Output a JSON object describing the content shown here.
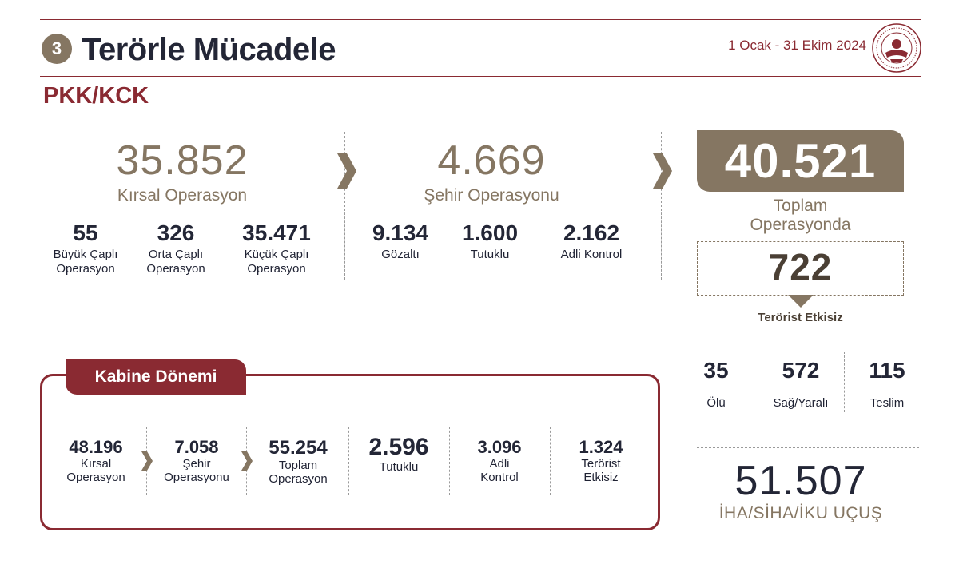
{
  "header": {
    "section_number": "3",
    "title": "Terörle Mücadele",
    "date_range": "1 Ocak - 31 Ekim 2024",
    "subtitle": "PKK/KCK"
  },
  "rural": {
    "value": "35.852",
    "label": "Kırsal Operasyon",
    "items": [
      {
        "value": "55",
        "line1": "Büyük Çaplı",
        "line2": "Operasyon"
      },
      {
        "value": "326",
        "line1": "Orta Çaplı",
        "line2": "Operasyon"
      },
      {
        "value": "35.471",
        "line1": "Küçük Çaplı",
        "line2": "Operasyon"
      }
    ]
  },
  "urban": {
    "value": "4.669",
    "label": "Şehir Operasyonu",
    "items": [
      {
        "value": "9.134",
        "label": "Gözaltı"
      },
      {
        "value": "1.600",
        "label": "Tutuklu"
      },
      {
        "value": "2.162",
        "label": "Adli Kontrol"
      }
    ]
  },
  "total": {
    "value": "40.521",
    "line1": "Toplam",
    "line2": "Operasyonda",
    "neutralized_value": "722",
    "neutralized_label": "Terörist Etkisiz",
    "breakdown": [
      {
        "value": "35",
        "label": "Ölü"
      },
      {
        "value": "572",
        "label": "Sağ/Yaralı"
      },
      {
        "value": "115",
        "label": "Teslim"
      }
    ]
  },
  "uav": {
    "value": "51.507",
    "label": "İHA/SİHA/İKU UÇUŞ"
  },
  "cabinet": {
    "title": "Kabine Dönemi",
    "items": [
      {
        "value": "48.196",
        "line1": "Kırsal",
        "line2": "Operasyon"
      },
      {
        "value": "7.058",
        "line1": "Şehir",
        "line2": "Operasyonu"
      },
      {
        "value": "55.254",
        "line1": "Toplam",
        "line2": "Operasyon"
      },
      {
        "value": "2.596",
        "line1": "Tutuklu",
        "line2": ""
      },
      {
        "value": "3.096",
        "line1": "Adli",
        "line2": "Kontrol"
      },
      {
        "value": "1.324",
        "line1": "Terörist",
        "line2": "Etkisiz"
      }
    ]
  },
  "colors": {
    "accent": "#8a2a32",
    "taupe": "#857662",
    "navy": "#232636"
  }
}
